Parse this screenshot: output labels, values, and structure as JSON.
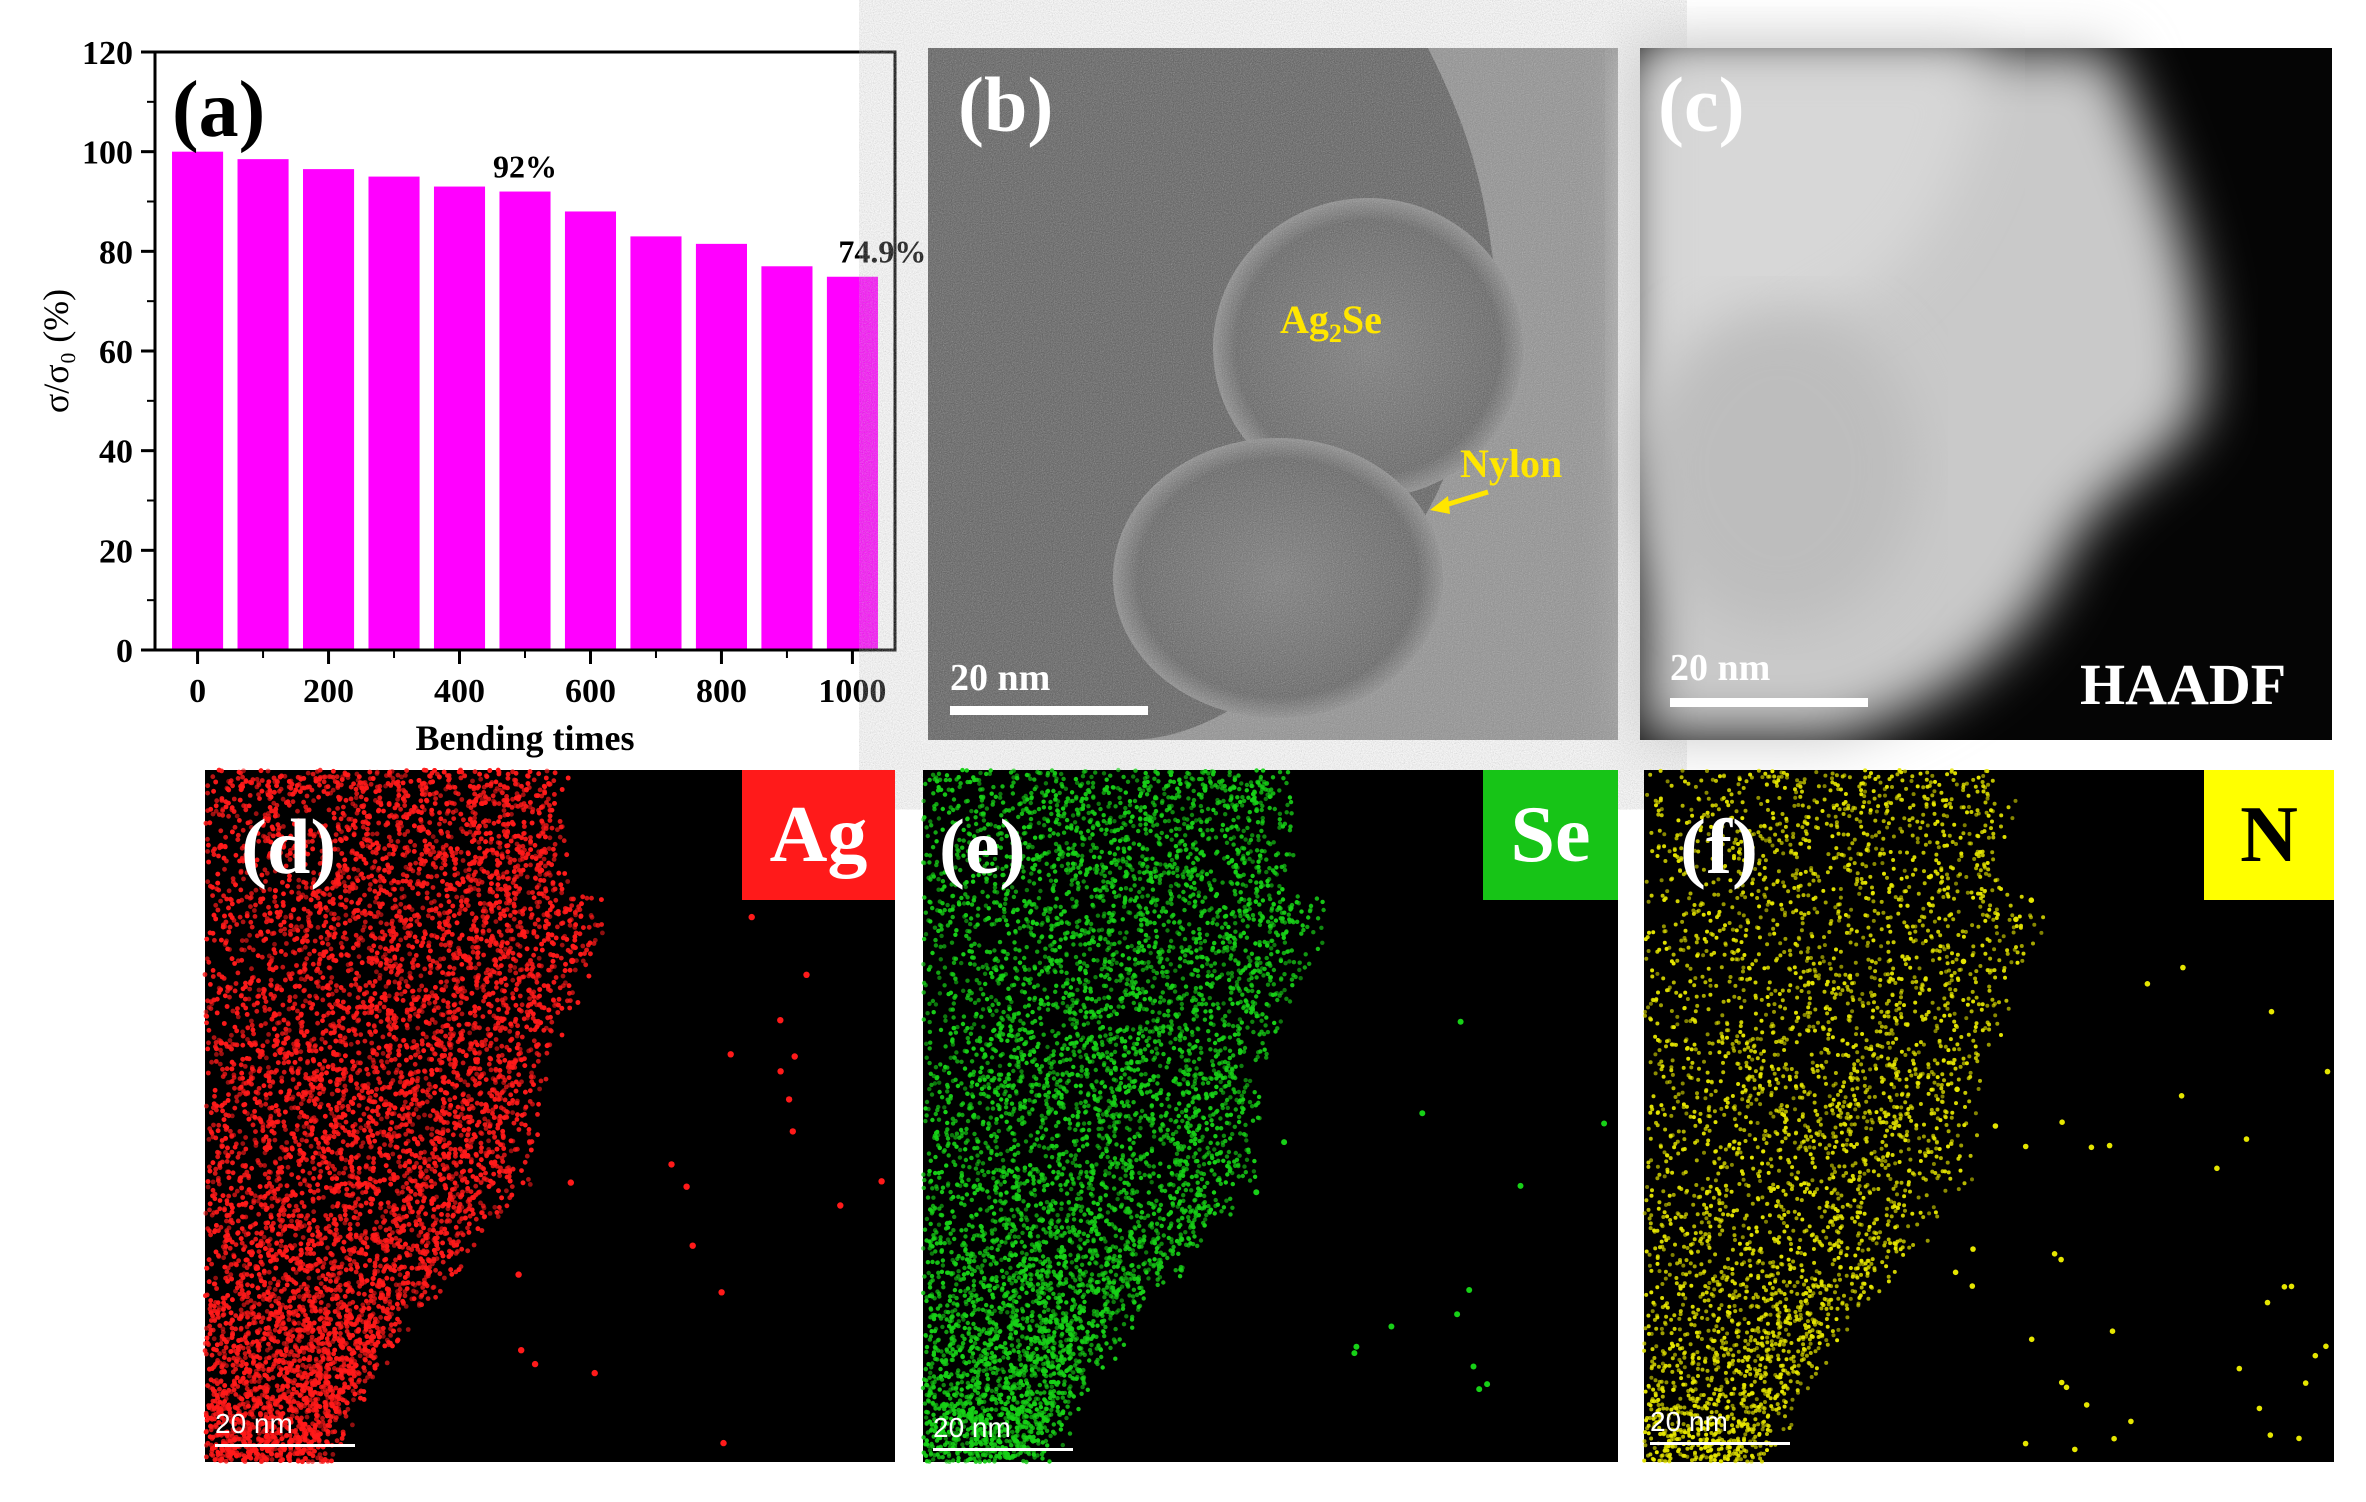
{
  "chart_data": {
    "type": "bar",
    "panel_label": "(a)",
    "x": [
      0,
      100,
      200,
      300,
      400,
      500,
      600,
      700,
      800,
      900,
      1000
    ],
    "values": [
      100,
      98.5,
      96.5,
      95,
      93,
      92,
      88,
      83,
      81.5,
      77,
      74.9
    ],
    "xticks": [
      "0",
      "200",
      "400",
      "600",
      "800",
      "1000"
    ],
    "xtick_values": [
      0,
      200,
      400,
      600,
      800,
      1000
    ],
    "yticks": [
      "0",
      "20",
      "40",
      "60",
      "80",
      "100",
      "120"
    ],
    "ylim": [
      0,
      120
    ],
    "xlabel": "Bending times",
    "ylabel": "σ/σ₀ (%)",
    "annotations": [
      {
        "text": "92%",
        "x": 500,
        "y": 92
      },
      {
        "text": "74.9%",
        "x": 1000,
        "y": 74.9
      }
    ],
    "bar_color": "#ff00ff"
  },
  "panels": {
    "b": {
      "label": "(b)",
      "scale": "20 nm",
      "ann_ag2se": "Ag",
      "ann_sub": "2",
      "ann_se": "Se",
      "ann_nylon": "Nylon"
    },
    "c": {
      "label": "(c)",
      "scale": "20 nm",
      "mode": "HAADF"
    },
    "d": {
      "label": "(d)",
      "element": "Ag",
      "scale": "20 nm",
      "color": "#ff1a1a"
    },
    "e": {
      "label": "(e)",
      "element": "Se",
      "scale": "20 nm",
      "color": "#17d117"
    },
    "f": {
      "label": "(f)",
      "element": "N",
      "scale": "20 nm",
      "color": "#e6e600"
    }
  }
}
